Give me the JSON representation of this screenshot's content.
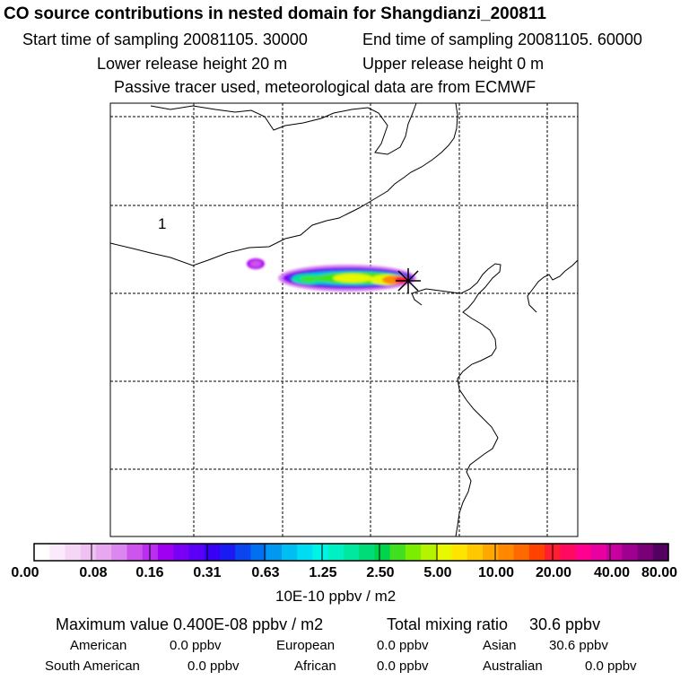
{
  "header": {
    "title": "CO  source contributions in nested domain for Shangdianzi_200811",
    "start_time": "Start time of sampling 20081105. 30000",
    "end_time": "End time of sampling 20081105. 60000",
    "lower_release": "Lower release height   20 m",
    "upper_release": "Upper release height    0 m",
    "note": "Passive tracer used, meteorological data are from ECMWF"
  },
  "map": {
    "region_label": "1",
    "receptor_marker": "Shangdianzi receptor (asterisk)",
    "plume": "CO source contribution plume along ~41N",
    "gridlines": "dashed lat/lon grid"
  },
  "colorbar": {
    "ticks": [
      "0.00",
      "0.08",
      "0.16",
      "0.31",
      "0.63",
      "1.25",
      "2.50",
      "5.00",
      "10.00",
      "20.00",
      "40.00",
      "80.00"
    ],
    "unit": "10E-10 ppbv / m2",
    "colors": [
      "#ffffff",
      "#fbeafb",
      "#f6d6f6",
      "#efc0f2",
      "#e8a8f0",
      "#dc86ef",
      "#cc55ee",
      "#b82ff0",
      "#a000f2",
      "#7a00f5",
      "#5a00f6",
      "#3800f4",
      "#1a1af2",
      "#0a45f0",
      "#0070f0",
      "#0098f0",
      "#00bef2",
      "#00dcf2",
      "#00f4e6",
      "#00f0c4",
      "#00e8a0",
      "#00dc78",
      "#00d44c",
      "#40e020",
      "#7ced00",
      "#b4f400",
      "#e8f800",
      "#ffe400",
      "#ffc800",
      "#ffa800",
      "#ff8800",
      "#ff6a00",
      "#ff4200",
      "#ff1e30",
      "#ff0a60",
      "#ff0090",
      "#e800a0",
      "#c800a0",
      "#a00090",
      "#7a0078",
      "#540060"
    ],
    "accent_receptor": "#000000"
  },
  "summary": {
    "max_label": "Maximum value  0.400E-08 ppbv / m2",
    "total_label": "Total mixing ratio",
    "total_value": "30.6 ppbv",
    "regions": [
      {
        "name": "American",
        "value": "0.0 ppbv"
      },
      {
        "name": "European",
        "value": "0.0 ppbv"
      },
      {
        "name": "Asian",
        "value": "30.6 ppbv"
      },
      {
        "name": "South American",
        "value": "0.0 ppbv"
      },
      {
        "name": "African",
        "value": "0.0 ppbv"
      },
      {
        "name": "Australian",
        "value": "0.0 ppbv"
      }
    ]
  }
}
